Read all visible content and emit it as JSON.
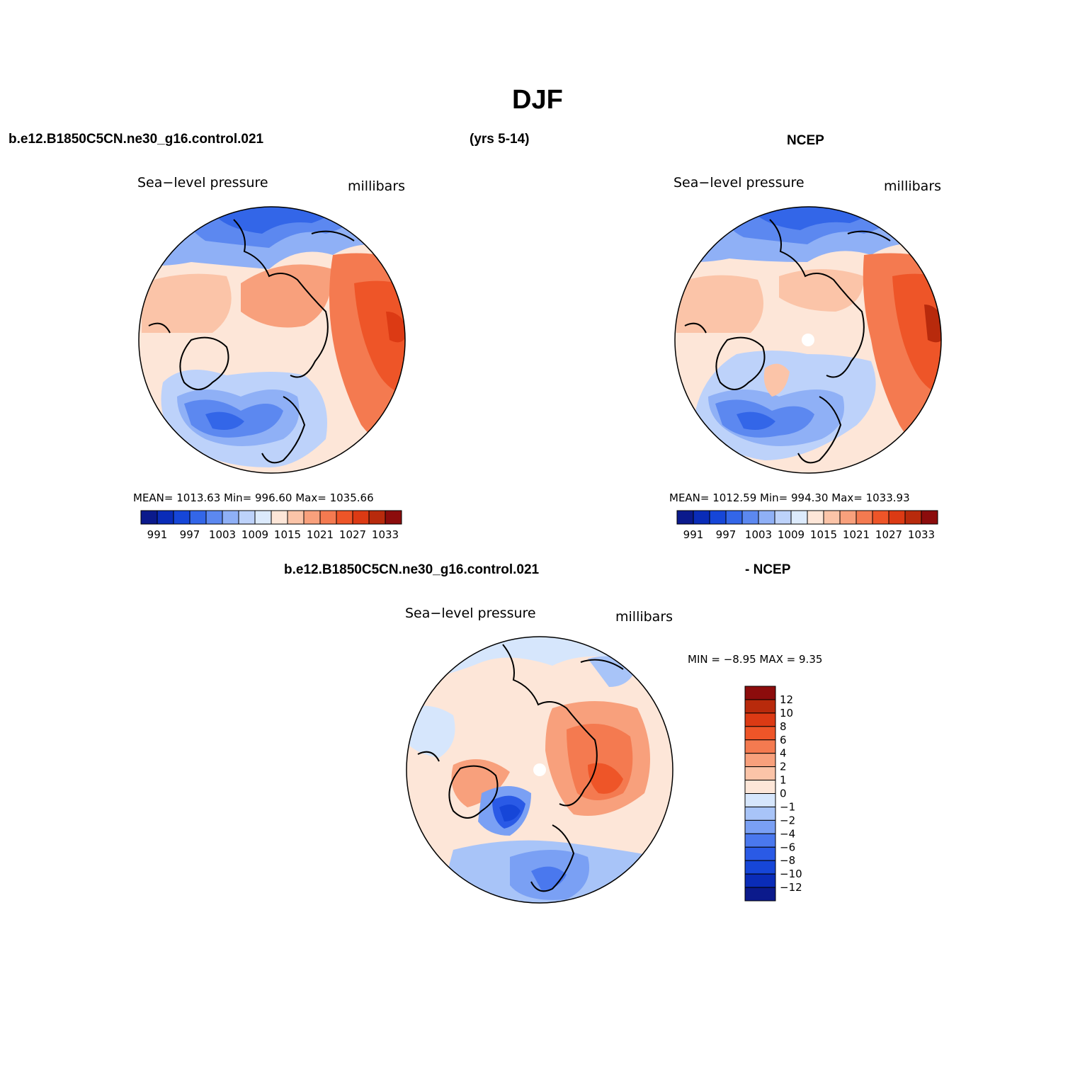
{
  "page": {
    "title": "DJF",
    "case_name": "b.e12.B1850C5CN.ne30_g16.control.021",
    "years": "(yrs 5-14)",
    "obs_name": "NCEP",
    "diff_case": "b.e12.B1850C5CN.ne30_g16.control.021",
    "diff_obs": "- NCEP"
  },
  "colors": {
    "slp_scale": [
      "#0b1a8c",
      "#0a2cb8",
      "#1646d8",
      "#3366e8",
      "#5c88f0",
      "#8fb0f6",
      "#bdd2fa",
      "#dceafc",
      "#fde6d8",
      "#fbc4a8",
      "#f8a07c",
      "#f47a50",
      "#ee5528",
      "#dc3a14",
      "#b82a0c",
      "#8c0c0c"
    ],
    "diff_scale": [
      "#0b1a8c",
      "#0a2cb8",
      "#1646d8",
      "#2a5ae6",
      "#4a78ee",
      "#7aa0f4",
      "#a8c4f8",
      "#d6e6fc",
      "#fde6d8",
      "#fbc4a8",
      "#f8a07c",
      "#f47a50",
      "#ee5528",
      "#dc3a14",
      "#b82a0c",
      "#8c0c0c"
    ]
  },
  "panels": {
    "model": {
      "var_name": "Sea−level pressure",
      "units": "millibars",
      "stats": "MEAN=  1013.63    Min=  996.60    Max=  1035.66",
      "tick_labels": [
        "991",
        "997",
        "1003",
        "1009",
        "1015",
        "1021",
        "1027",
        "1033"
      ]
    },
    "obs": {
      "var_name": "Sea−level pressure",
      "units": "millibars",
      "stats": "MEAN=  1012.59    Min=  994.30    Max=  1033.93",
      "tick_labels": [
        "991",
        "997",
        "1003",
        "1009",
        "1015",
        "1021",
        "1027",
        "1033"
      ]
    },
    "diff": {
      "var_name": "Sea−level pressure",
      "units": "millibars",
      "stats": "MIN =   −8.95  MAX =     9.35",
      "tick_labels": [
        "12",
        "10",
        "8",
        "6",
        "4",
        "2",
        "1",
        "0",
        "−1",
        "−2",
        "−4",
        "−6",
        "−8",
        "−10",
        "−12"
      ]
    }
  }
}
